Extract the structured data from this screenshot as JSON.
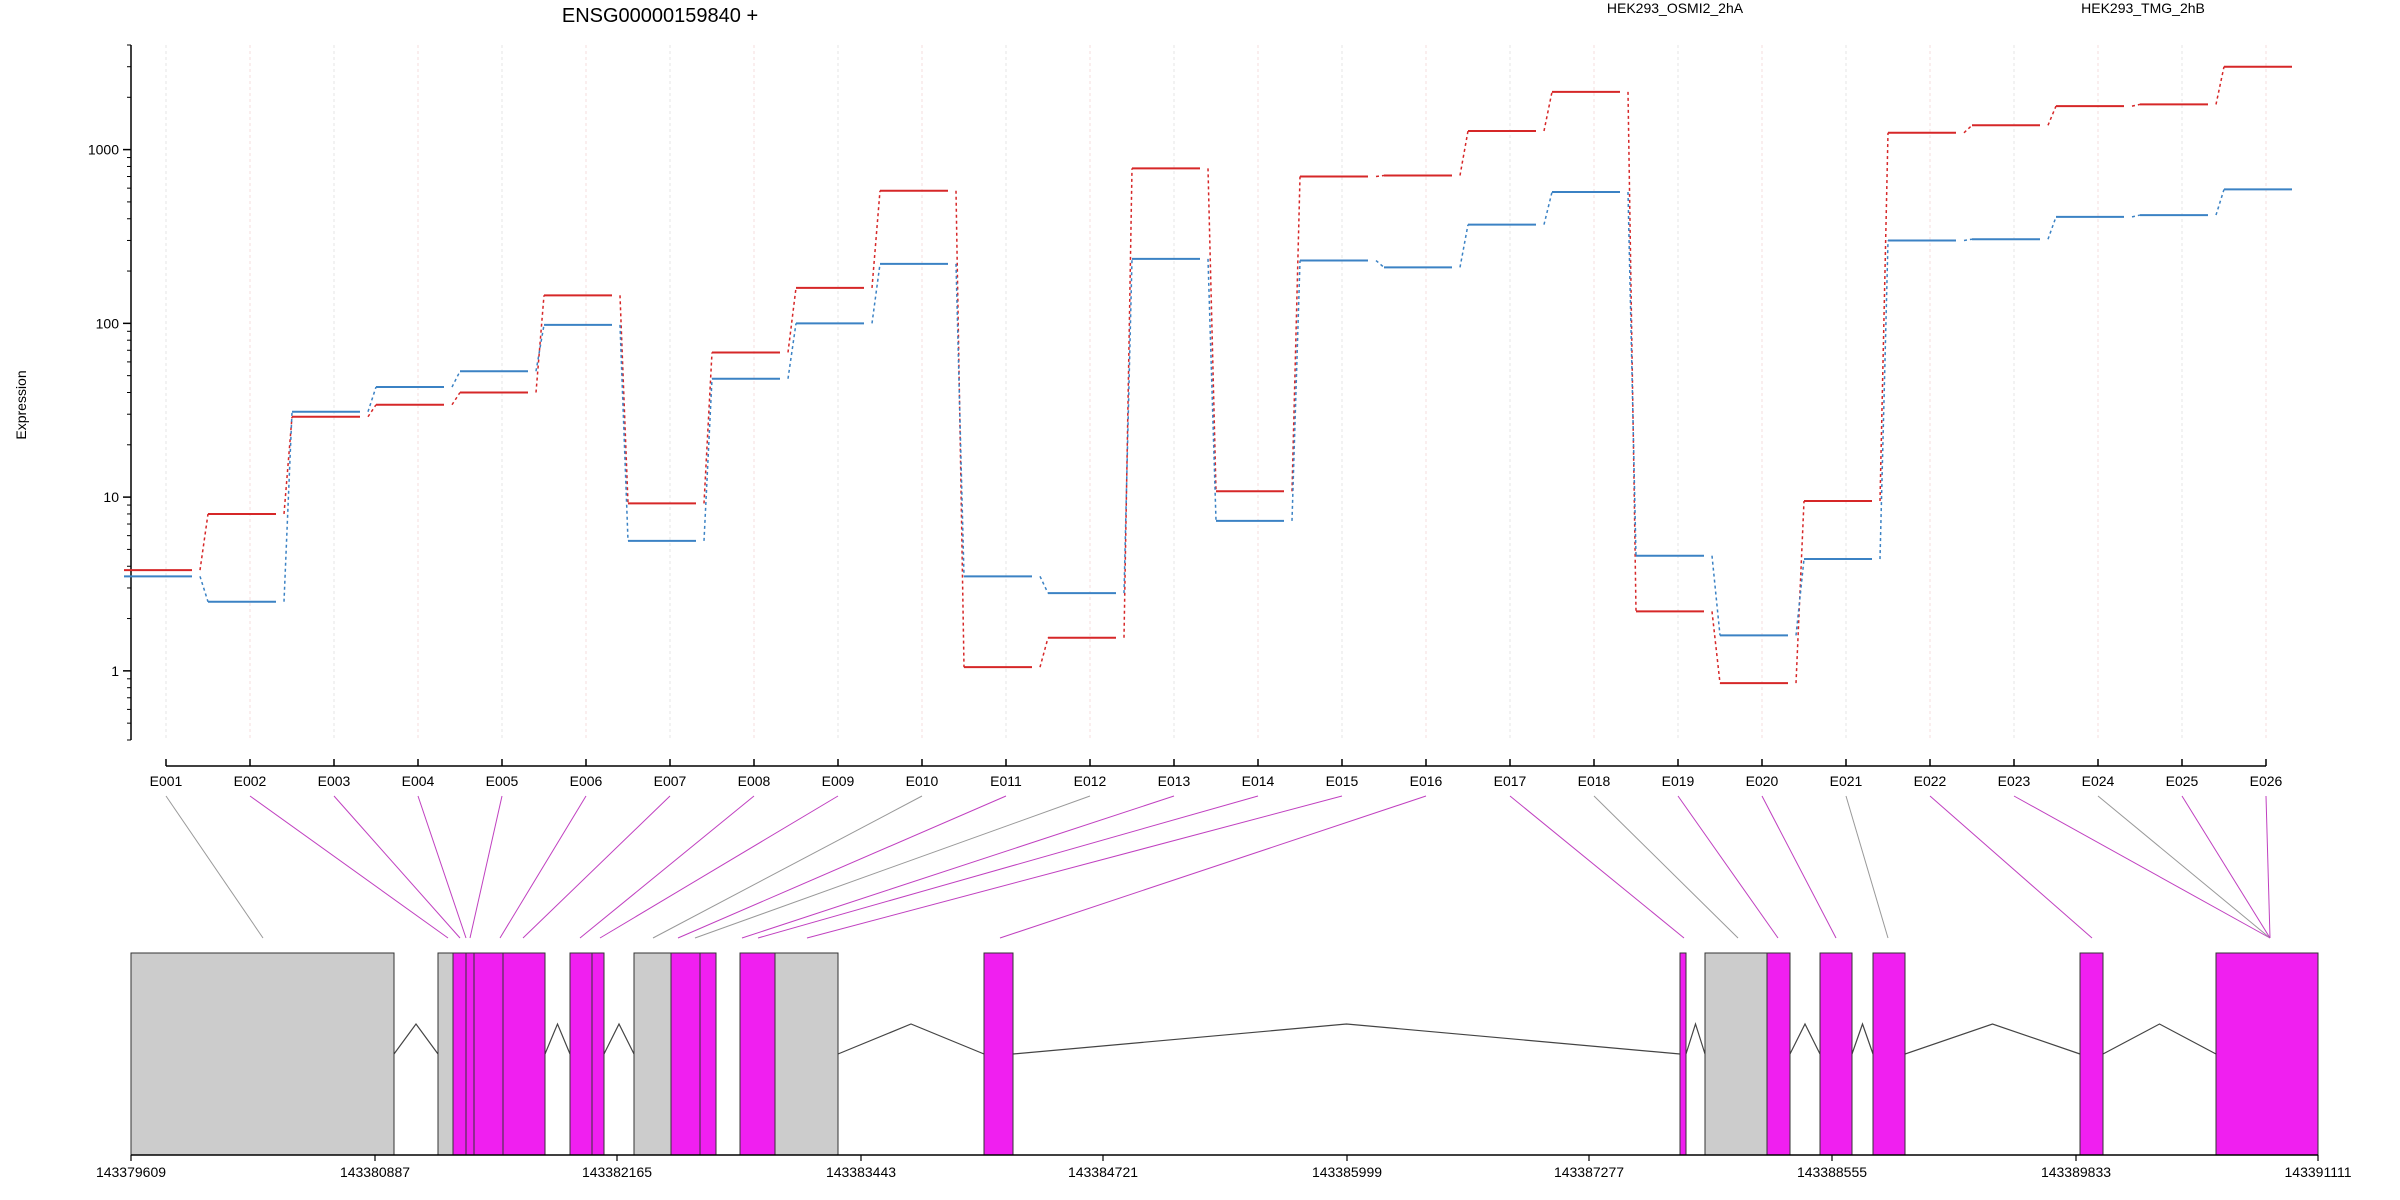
{
  "chart_data": {
    "type": "line",
    "title": "ENSG00000159840 +",
    "ylabel": "Expression",
    "y_scale": "log",
    "ylim": [
      0.4,
      4000
    ],
    "yticks": [
      1,
      10,
      100,
      1000
    ],
    "grid": "vertical",
    "legend_position": "top-right",
    "exons": [
      "E001",
      "E002",
      "E003",
      "E004",
      "E005",
      "E006",
      "E007",
      "E008",
      "E009",
      "E010",
      "E011",
      "E012",
      "E013",
      "E014",
      "E015",
      "E016",
      "E017",
      "E018",
      "E019",
      "E020",
      "E021",
      "E022",
      "E023",
      "E024",
      "E025",
      "E026"
    ],
    "series": [
      {
        "name": "HEK293_OSMI2_2hA",
        "color": "#d62728",
        "values": [
          3.8,
          8,
          29,
          34,
          40,
          145,
          9.2,
          68,
          160,
          580,
          1.05,
          1.55,
          780,
          10.8,
          700,
          710,
          1280,
          2150,
          2.2,
          0.85,
          9.5,
          1250,
          1380,
          1780,
          1820,
          3000
        ]
      },
      {
        "name": "HEK293_TMG_2hB",
        "color": "#3b82c4",
        "values": [
          3.5,
          2.5,
          31,
          43,
          53,
          98,
          5.6,
          48,
          100,
          220,
          3.5,
          2.8,
          235,
          7.3,
          230,
          210,
          370,
          570,
          4.6,
          1.6,
          4.4,
          300,
          305,
          410,
          420,
          590
        ]
      }
    ],
    "gene_model": {
      "coordinate_ticks": [
        "143379609",
        "143380887",
        "143382165",
        "143383443",
        "143384721",
        "143385999",
        "143387277",
        "143388555",
        "143389833",
        "143391111"
      ]
    },
    "colors": {
      "exon_tested": "#f01ff0",
      "exon_untested": "#cccccc",
      "connector_tested": "#c040c0",
      "connector_untested": "#999999",
      "grid_even": "#e5e5e5",
      "grid_odd": "#f5dddd"
    }
  }
}
